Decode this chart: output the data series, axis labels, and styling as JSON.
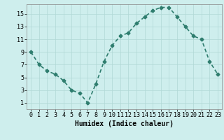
{
  "x": [
    0,
    1,
    2,
    3,
    4,
    5,
    6,
    7,
    8,
    9,
    10,
    11,
    12,
    13,
    14,
    15,
    16,
    17,
    18,
    19,
    20,
    21,
    22,
    23
  ],
  "y": [
    9,
    7,
    6,
    5.5,
    4.5,
    3,
    2.5,
    1,
    4,
    7.5,
    10,
    11.5,
    12,
    13.5,
    14.5,
    15.5,
    16,
    16,
    14.5,
    13,
    11.5,
    11,
    7.5,
    5.5
  ],
  "line_color": "#2e7d6e",
  "marker": "D",
  "marker_size": 2.5,
  "background_color": "#ceeeed",
  "grid_color": "#b0d8d5",
  "xlabel": "Humidex (Indice chaleur)",
  "xlabel_fontsize": 7,
  "xlabel_fontweight": "bold",
  "xlim": [
    -0.5,
    23.5
  ],
  "ylim": [
    0,
    16.5
  ],
  "yticks": [
    1,
    3,
    5,
    7,
    9,
    11,
    13,
    15
  ],
  "xticks": [
    0,
    1,
    2,
    3,
    4,
    5,
    6,
    7,
    8,
    9,
    10,
    11,
    12,
    13,
    14,
    15,
    16,
    17,
    18,
    19,
    20,
    21,
    22,
    23
  ],
  "tick_fontsize": 6,
  "linewidth": 1.2
}
